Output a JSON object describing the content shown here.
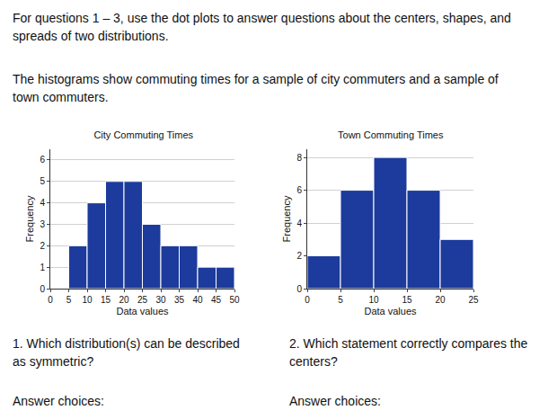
{
  "intro": "For questions 1 – 3, use the dot plots to answer questions about the centers, shapes, and spreads of two distributions.",
  "context": "The histograms show commuting times for a sample of city commuters and a sample of town commuters.",
  "questions": [
    {
      "text": "1. Which distribution(s) can be described as symmetric?",
      "prompt": "Answer choices:"
    },
    {
      "text": "2. Which statement correctly compares the centers?",
      "prompt": "Answer choices:"
    }
  ],
  "chart_data": [
    {
      "type": "histogram",
      "title": "City Commuting Times",
      "x_label": "Data values",
      "y_label": "Frequency",
      "bins": [
        5,
        10,
        15,
        20,
        25,
        30,
        35,
        40,
        45,
        50
      ],
      "values": [
        2,
        4,
        5,
        5,
        3,
        2,
        2,
        1,
        1
      ],
      "color": "#1c3b9c",
      "xlim": [
        0,
        50
      ],
      "xticks": [
        0,
        5,
        10,
        15,
        20,
        25,
        30,
        35,
        40,
        45,
        50
      ],
      "ylim": [
        0,
        6.5
      ],
      "yticks": [
        0,
        1,
        2,
        3,
        4,
        5,
        6
      ],
      "grid": true
    },
    {
      "type": "histogram",
      "title": "Town Commuting Times",
      "x_label": "Data values",
      "y_label": "Frequency",
      "bins": [
        0,
        5,
        10,
        15,
        20,
        25
      ],
      "values": [
        2,
        6,
        8,
        6,
        3
      ],
      "color": "#1c3b9c",
      "xlim": [
        0,
        25
      ],
      "xticks": [
        0,
        5,
        10,
        15,
        20,
        25
      ],
      "ylim": [
        0,
        8.5
      ],
      "yticks": [
        0,
        2,
        4,
        6,
        8
      ],
      "grid": true
    }
  ]
}
